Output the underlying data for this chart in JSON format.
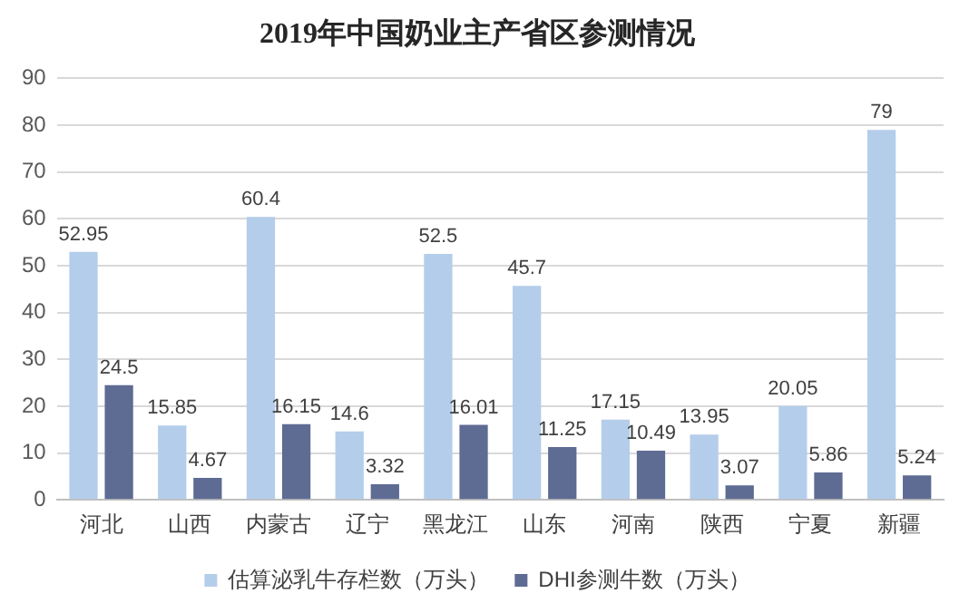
{
  "chart_data": {
    "type": "bar",
    "title": "2019年中国奶业主产省区参测情况",
    "categories": [
      "河北",
      "山西",
      "内蒙古",
      "辽宁",
      "黑龙江",
      "山东",
      "河南",
      "陕西",
      "宁夏",
      "新疆"
    ],
    "series": [
      {
        "name": "估算泌乳牛存栏数（万头）",
        "color": "#b4cdeb",
        "values": [
          52.95,
          15.85,
          60.4,
          14.6,
          52.5,
          45.7,
          17.15,
          13.95,
          20.05,
          79
        ]
      },
      {
        "name": "DHI参测牛数（万头）",
        "color": "#5e6b93",
        "values": [
          24.5,
          4.67,
          16.15,
          3.32,
          16.01,
          11.25,
          10.49,
          3.07,
          5.86,
          5.24
        ]
      }
    ],
    "ylim": [
      0,
      90
    ],
    "yticks": [
      0,
      10,
      20,
      30,
      40,
      50,
      60,
      70,
      80,
      90
    ],
    "grid": "y",
    "legend": "bottom",
    "data_labels": true
  }
}
